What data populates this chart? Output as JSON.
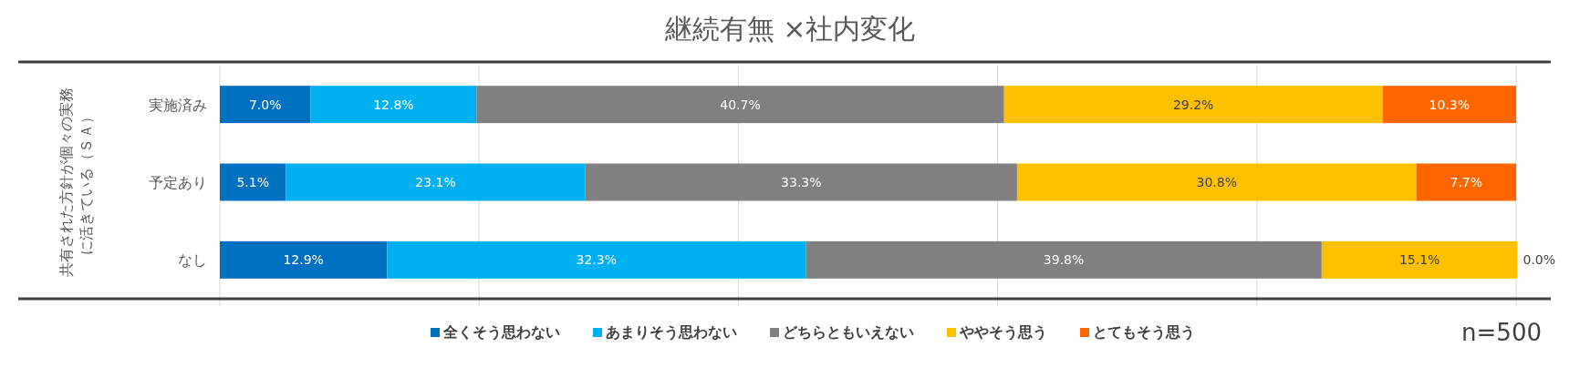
{
  "chart_data": {
    "type": "bar",
    "orientation": "horizontal",
    "stacked": true,
    "title": "継続有無 ×社内変化",
    "ylabel": "共有された方針が個々の実務に活きている（ＳＡ）",
    "categories": [
      "実施済み",
      "予定あり",
      "なし"
    ],
    "series": [
      {
        "name": "全くそう思わない",
        "color": "#0070c0",
        "values": [
          7.0,
          5.1,
          12.9
        ],
        "value_labels": [
          "7.0%",
          "5.1%",
          "12.9%"
        ]
      },
      {
        "name": "あまりそう思わない",
        "color": "#00b0f0",
        "values": [
          12.8,
          23.1,
          32.3
        ],
        "value_labels": [
          "12.8%",
          "23.1%",
          "32.3%"
        ]
      },
      {
        "name": "どちらともいえない",
        "color": "#808080",
        "values": [
          40.7,
          33.3,
          39.8
        ],
        "value_labels": [
          "40.7%",
          "33.3%",
          "39.8%"
        ]
      },
      {
        "name": "ややそう思う",
        "color": "#ffc000",
        "values": [
          29.2,
          30.8,
          15.1
        ],
        "value_labels": [
          "29.2%",
          "30.8%",
          "15.1%"
        ]
      },
      {
        "name": "とてもそう思う",
        "color": "#ff6600",
        "values": [
          10.3,
          7.7,
          0.0
        ],
        "value_labels": [
          "10.3%",
          "7.7%",
          "0.0%"
        ]
      }
    ],
    "xlim": [
      0,
      100
    ],
    "xticks": [
      {
        "value": 0,
        "label": null
      },
      {
        "value": 20,
        "label": null
      },
      {
        "value": 40,
        "label": null
      },
      {
        "value": 60,
        "label": null
      },
      {
        "value": 80,
        "label": null
      },
      {
        "value": 100,
        "label": null
      }
    ],
    "tick_labels": "y",
    "grid": "x",
    "legend": "bottom",
    "annotations": [
      "n=500"
    ]
  }
}
